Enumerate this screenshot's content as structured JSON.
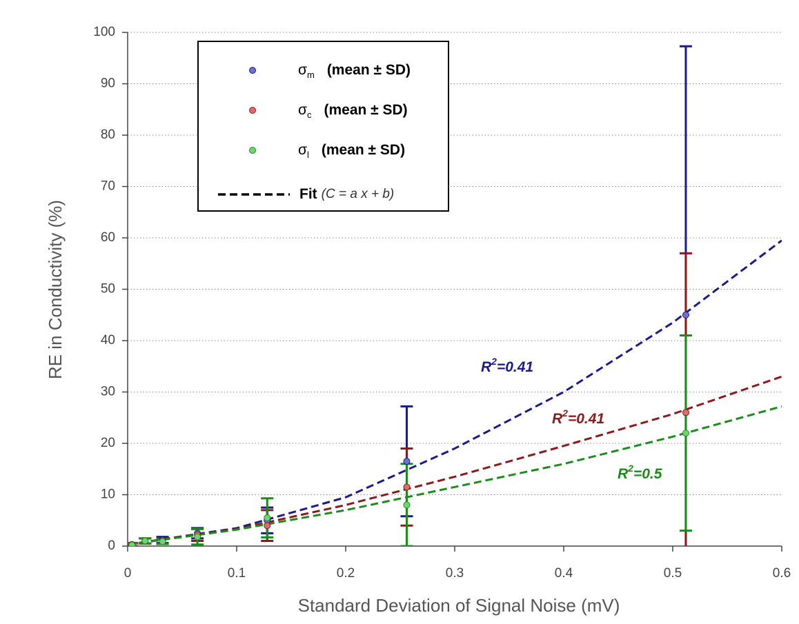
{
  "chart_data": {
    "type": "scatter",
    "xlabel": "Standard Deviation of Signal Noise (mV)",
    "ylabel": "RE in Conductivity (%)",
    "xlim": [
      0,
      0.6
    ],
    "ylim": [
      0,
      100
    ],
    "xticks": [
      0,
      0.1,
      0.2,
      0.3,
      0.4,
      0.5,
      0.6
    ],
    "yticks": [
      0,
      10,
      20,
      30,
      40,
      50,
      60,
      70,
      80,
      90,
      100
    ],
    "grid": true,
    "legend": "upper left",
    "x": [
      0.004,
      0.016,
      0.032,
      0.064,
      0.128,
      0.256,
      0.512
    ],
    "series": [
      {
        "symbol": "σ",
        "subscript": "m",
        "name": "(mean ± SD)",
        "color": "#1a1a8c",
        "marker_color": "#6f6fd6",
        "values": [
          0.3,
          1.0,
          1.2,
          2.5,
          5.0,
          16.5,
          45
        ],
        "errors": [
          0.3,
          0.5,
          0.6,
          1.0,
          2.5,
          10.7,
          52.3
        ]
      },
      {
        "symbol": "σ",
        "subscript": "c",
        "name": "(mean ± SD)",
        "color": "#8c1a1a",
        "marker_color": "#e06b6b",
        "values": [
          0.3,
          1.0,
          1.0,
          2.2,
          4.0,
          11.5,
          26
        ],
        "errors": [
          0.3,
          0.5,
          0.5,
          1.2,
          3.0,
          7.5,
          31
        ]
      },
      {
        "symbol": "σ",
        "subscript": "l",
        "name": "(mean ± SD)",
        "color": "#1a8c1a",
        "marker_color": "#6fd66f",
        "values": [
          0.2,
          1.0,
          0.9,
          1.8,
          5.5,
          8.0,
          22
        ],
        "errors": [
          0.3,
          0.5,
          0.5,
          1.5,
          3.8,
          8.0,
          19
        ]
      }
    ],
    "fit_label": "Fit",
    "fit_formula": "(C = a x + b)",
    "fits": [
      {
        "color": "#1a1a8c",
        "x": [
          0,
          0.1,
          0.2,
          0.3,
          0.4,
          0.5,
          0.6
        ],
        "values": [
          0.3,
          3.5,
          9.5,
          19,
          30,
          43.5,
          59.5
        ]
      },
      {
        "color": "#8c1a1a",
        "x": [
          0,
          0.1,
          0.2,
          0.3,
          0.4,
          0.5,
          0.6
        ],
        "values": [
          0.3,
          3.3,
          8,
          13.5,
          19.5,
          25.7,
          33
        ]
      },
      {
        "color": "#1a8c1a",
        "x": [
          0,
          0.1,
          0.2,
          0.3,
          0.4,
          0.5,
          0.6
        ],
        "values": [
          0.3,
          3.2,
          7,
          11.5,
          16,
          21.3,
          27.2
        ]
      }
    ],
    "annotations": [
      {
        "main": "R",
        "sup": "2",
        "rest": "=0.41",
        "color": "#1a1a8c"
      },
      {
        "main": "R",
        "sup": "2",
        "rest": "=0.41",
        "color": "#8c1a1a"
      },
      {
        "main": "R",
        "sup": "2",
        "rest": "=0.5",
        "color": "#1a8c1a"
      }
    ]
  }
}
